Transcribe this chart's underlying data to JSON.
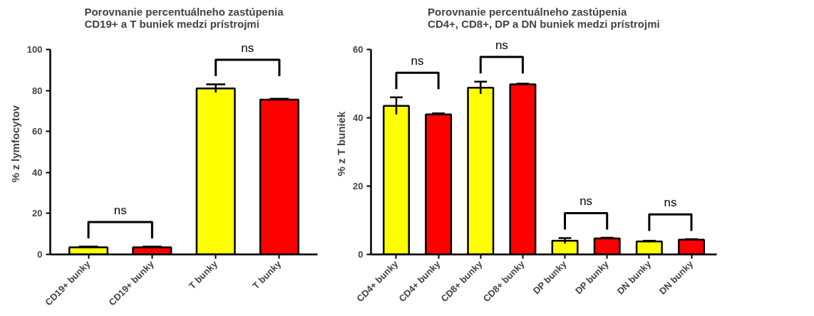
{
  "chart_data": [
    {
      "type": "bar",
      "title": "Porovnanie percentuálneho zastúpenia\nCD19+ a T buniek medzi prístrojmi",
      "ylabel": "% z lymfocytov",
      "categories": [
        "CD19+ bunky",
        "CD19+ bunky",
        "T bunky",
        "T bunky"
      ],
      "values": [
        3.5,
        3.5,
        81,
        75.5
      ],
      "errors": [
        0.3,
        0.3,
        2,
        0.5
      ],
      "colors": [
        "#ffff00",
        "#ff0000",
        "#ffff00",
        "#ff0000"
      ],
      "ylim": [
        0,
        100
      ],
      "yticks": [
        0,
        20,
        40,
        60,
        80,
        100
      ],
      "grid": false,
      "annotations": [
        "ns",
        "ns"
      ]
    },
    {
      "type": "bar",
      "title": "Porovnanie percentuálneho zastúpenia\nCD4+, CD8+, DP a DN buniek medzi prístrojmi",
      "ylabel": "% z T buniek",
      "categories": [
        "CD4+ bunky",
        "CD4+ bunky",
        "CD8+ bunky",
        "CD8+ bunky",
        "DP bunky",
        "DP bunky",
        "DN bunky",
        "DN bunky"
      ],
      "values": [
        43.5,
        41,
        48.8,
        49.8,
        4.0,
        4.7,
        3.8,
        4.3
      ],
      "errors": [
        2.5,
        0.3,
        1.8,
        0.2,
        0.8,
        0.2,
        0.2,
        0.2
      ],
      "colors": [
        "#ffff00",
        "#ff0000",
        "#ffff00",
        "#ff0000",
        "#ffff00",
        "#ff0000",
        "#ffff00",
        "#ff0000"
      ],
      "ylim": [
        0,
        60
      ],
      "yticks": [
        0,
        20,
        40,
        60
      ],
      "grid": false,
      "annotations": [
        "ns",
        "ns",
        "ns",
        "ns"
      ]
    }
  ]
}
